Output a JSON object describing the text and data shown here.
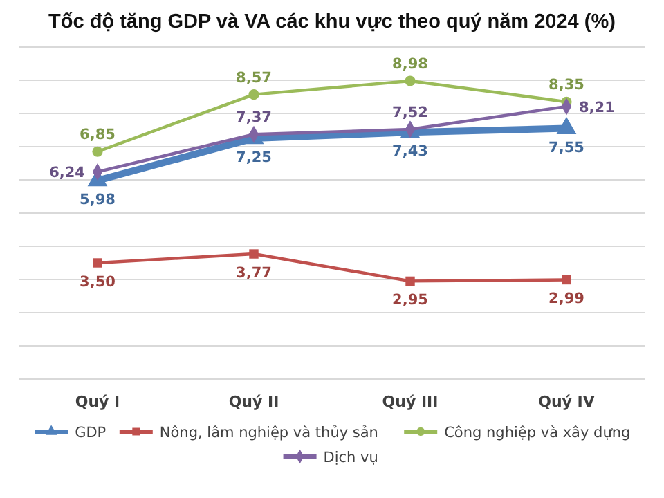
{
  "chart_data": {
    "type": "line",
    "title": "Tốc độ tăng GDP và VA các khu vực theo quý năm 2024 (%)",
    "categories": [
      "Quý I",
      "Quý II",
      "Quý III",
      "Quý IV"
    ],
    "series": [
      {
        "name": "GDP",
        "color": "#4f81bd",
        "marker": "triangle",
        "values": [
          5.98,
          7.25,
          7.43,
          7.55
        ],
        "value_labels": [
          "5,98",
          "7,25",
          "7,43",
          "7,55"
        ]
      },
      {
        "name": "Nông, lâm nghiệp và thủy sản",
        "color": "#c0504d",
        "marker": "square",
        "values": [
          3.5,
          3.77,
          2.95,
          2.99
        ],
        "value_labels": [
          "3,50",
          "3,77",
          "2,95",
          "2,99"
        ]
      },
      {
        "name": "Công nghiệp và xây dựng",
        "color": "#9bbb59",
        "marker": "circle",
        "values": [
          6.85,
          8.57,
          8.98,
          8.35
        ],
        "value_labels": [
          "6,85",
          "8,57",
          "8,98",
          "8,35"
        ]
      },
      {
        "name": "Dịch vụ",
        "color": "#8064a2",
        "marker": "diamond",
        "values": [
          6.24,
          7.37,
          7.52,
          8.21
        ],
        "value_labels": [
          "6,24",
          "7,37",
          "7,52",
          "8,21"
        ]
      }
    ],
    "ylim": [
      0,
      10
    ],
    "yticks": [
      {
        "value": 0,
        "label": null
      },
      {
        "value": 1,
        "label": null
      },
      {
        "value": 2,
        "label": null
      },
      {
        "value": 3,
        "label": null
      },
      {
        "value": 4,
        "label": null
      },
      {
        "value": 5,
        "label": null
      },
      {
        "value": 6,
        "label": null
      },
      {
        "value": 7,
        "label": null
      },
      {
        "value": 8,
        "label": null
      },
      {
        "value": 9,
        "label": null
      },
      {
        "value": 10,
        "label": null
      }
    ],
    "grid": "y",
    "legend": "bottom",
    "data_labels": true
  }
}
